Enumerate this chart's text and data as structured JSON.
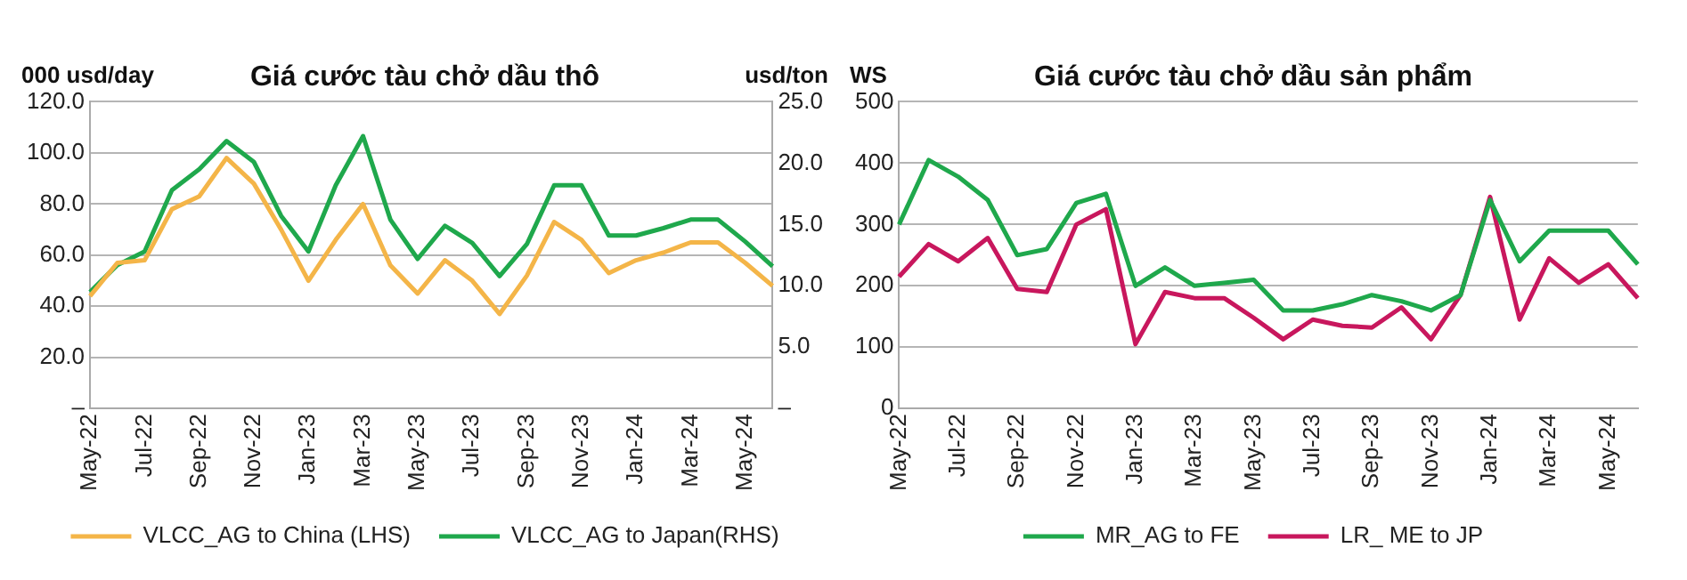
{
  "chart_data": [
    {
      "type": "line",
      "title": "Giá cước tàu chở dầu thô",
      "ylabel": "000 usd/day",
      "y2label": "usd/ton",
      "categories": [
        "May-22",
        null,
        "Jul-22",
        null,
        "Sep-22",
        null,
        "Nov-22",
        null,
        "Jan-23",
        null,
        "Mar-23",
        null,
        "May-23",
        null,
        "Jul-23",
        null,
        "Sep-23",
        null,
        "Nov-23",
        null,
        "Jan-24",
        null,
        "Mar-24",
        null,
        "May-24",
        null
      ],
      "series": [
        {
          "name": "VLCC_AG to China (LHS)",
          "color": "#f4b548",
          "values": [
            44,
            57,
            58,
            78,
            83,
            98,
            88,
            70,
            50,
            66,
            80,
            56,
            45,
            58,
            50,
            37,
            52,
            73,
            66,
            53,
            58,
            61,
            65,
            65,
            57,
            48
          ]
        },
        {
          "name": "VLCC_AG to Japan(RHS)",
          "color": "#1fa84c",
          "axis": "y2",
          "values": [
            9.5,
            11.7,
            12.8,
            17.8,
            19.5,
            21.8,
            20.1,
            15.7,
            12.8,
            18.2,
            22.2,
            15.4,
            12.2,
            14.9,
            13.5,
            10.8,
            13.4,
            18.2,
            18.2,
            14.1,
            14.1,
            14.7,
            15.4,
            15.4,
            13.6,
            11.6
          ]
        }
      ],
      "ylim": [
        0,
        120
      ],
      "yticks": [
        {
          "value": 0,
          "label": "–"
        },
        {
          "value": 20,
          "label": "20.0"
        },
        {
          "value": 40,
          "label": "40.0"
        },
        {
          "value": 60,
          "label": "60.0"
        },
        {
          "value": 80,
          "label": "80.0"
        },
        {
          "value": 100,
          "label": "100.0"
        },
        {
          "value": 120,
          "label": "120.0"
        }
      ],
      "y2lim": [
        0,
        25
      ],
      "y2ticks": [
        {
          "value": 0,
          "label": "–"
        },
        {
          "value": 5,
          "label": "5.0"
        },
        {
          "value": 10,
          "label": "10.0"
        },
        {
          "value": 15,
          "label": "15.0"
        },
        {
          "value": 20,
          "label": "20.0"
        },
        {
          "value": 25,
          "label": "25.0"
        }
      ],
      "grid": "y",
      "legend": "bottom"
    },
    {
      "type": "line",
      "title": "Giá cước tàu chở dầu sản phẩm",
      "ylabel": "WS",
      "categories": [
        "May-22",
        null,
        "Jul-22",
        null,
        "Sep-22",
        null,
        "Nov-22",
        null,
        "Jan-23",
        null,
        "Mar-23",
        null,
        "May-23",
        null,
        "Jul-23",
        null,
        "Sep-23",
        null,
        "Nov-23",
        null,
        "Jan-24",
        null,
        "Mar-24",
        null,
        "May-24",
        null
      ],
      "series": [
        {
          "name": "MR_AG to FE",
          "color": "#1fa84c",
          "values": [
            300,
            405,
            378,
            340,
            250,
            260,
            335,
            350,
            200,
            230,
            200,
            205,
            210,
            160,
            160,
            170,
            185,
            175,
            160,
            185,
            340,
            240,
            290,
            290,
            290,
            235
          ]
        },
        {
          "name": "LR_ ME to JP",
          "color": "#c8175d",
          "values": [
            215,
            268,
            240,
            278,
            195,
            190,
            300,
            325,
            105,
            190,
            180,
            180,
            148,
            113,
            145,
            135,
            132,
            165,
            113,
            185,
            345,
            145,
            245,
            205,
            235,
            180
          ]
        }
      ],
      "ylim": [
        0,
        500
      ],
      "yticks": [
        0,
        100,
        200,
        300,
        400,
        500
      ],
      "grid": "y",
      "legend": "bottom"
    }
  ]
}
